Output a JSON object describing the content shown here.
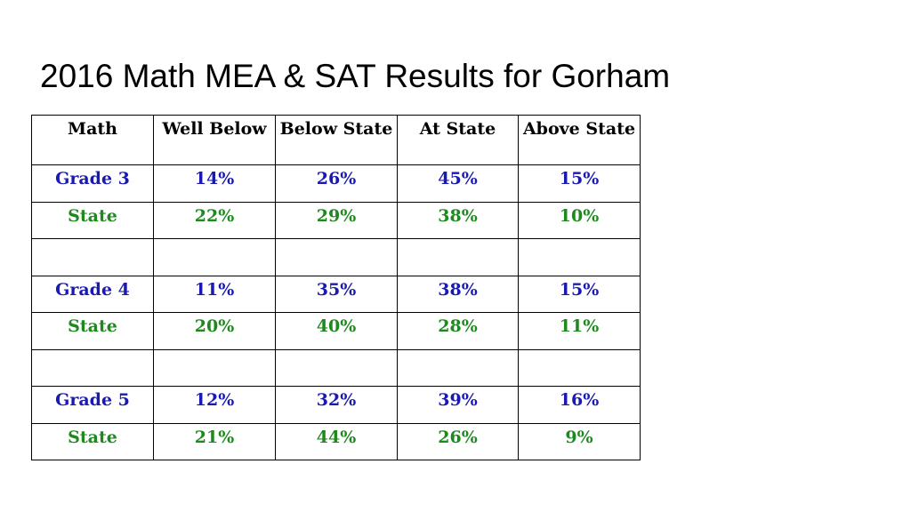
{
  "title": "2016 Math MEA & SAT Results for Gorham",
  "colors": {
    "grade": "#1a1ab3",
    "state": "#1e8a1e"
  },
  "table": {
    "headers": [
      "Math",
      "Well Below",
      "Below State",
      "At State",
      "Above State"
    ],
    "rows": [
      {
        "type": "grade",
        "cells": [
          "Grade 3",
          "14%",
          "26%",
          "45%",
          "15%"
        ]
      },
      {
        "type": "state",
        "cells": [
          "State",
          "22%",
          "29%",
          "38%",
          "10%"
        ]
      },
      {
        "type": "empty",
        "cells": [
          "",
          "",
          "",
          "",
          ""
        ]
      },
      {
        "type": "grade",
        "cells": [
          "Grade 4",
          "11%",
          "35%",
          "38%",
          "15%"
        ]
      },
      {
        "type": "state",
        "cells": [
          "State",
          "20%",
          "40%",
          "28%",
          "11%"
        ]
      },
      {
        "type": "empty",
        "cells": [
          "",
          "",
          "",
          "",
          ""
        ]
      },
      {
        "type": "grade",
        "cells": [
          "Grade 5",
          "12%",
          "32%",
          "39%",
          "16%"
        ]
      },
      {
        "type": "state",
        "cells": [
          "State",
          "21%",
          "44%",
          "26%",
          "9%"
        ]
      }
    ]
  }
}
